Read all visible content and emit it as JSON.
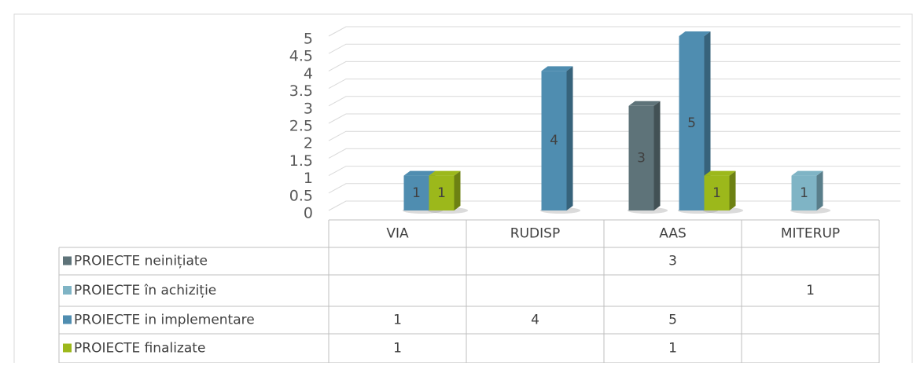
{
  "chart_data": {
    "type": "bar3d",
    "categories": [
      "VIA",
      "RUDISP",
      "AAS",
      "MITERUP"
    ],
    "series": [
      {
        "name": "PROIECTE neinițiate",
        "color": "#5e7379",
        "values": [
          null,
          null,
          3,
          null
        ]
      },
      {
        "name": "PROIECTE în achiziție",
        "color": "#7fb4c5",
        "values": [
          null,
          null,
          null,
          1
        ]
      },
      {
        "name": "PROIECTE in implementare",
        "color": "#4f8db0",
        "values": [
          1,
          4,
          5,
          null
        ]
      },
      {
        "name": "PROIECTE finalizate",
        "color": "#9cb81b",
        "values": [
          1,
          null,
          1,
          null
        ]
      }
    ],
    "ylim": [
      0,
      5
    ],
    "yticks": [
      0,
      0.5,
      1,
      1.5,
      2,
      2.5,
      3,
      3.5,
      4,
      4.5,
      5
    ],
    "grid": true
  }
}
